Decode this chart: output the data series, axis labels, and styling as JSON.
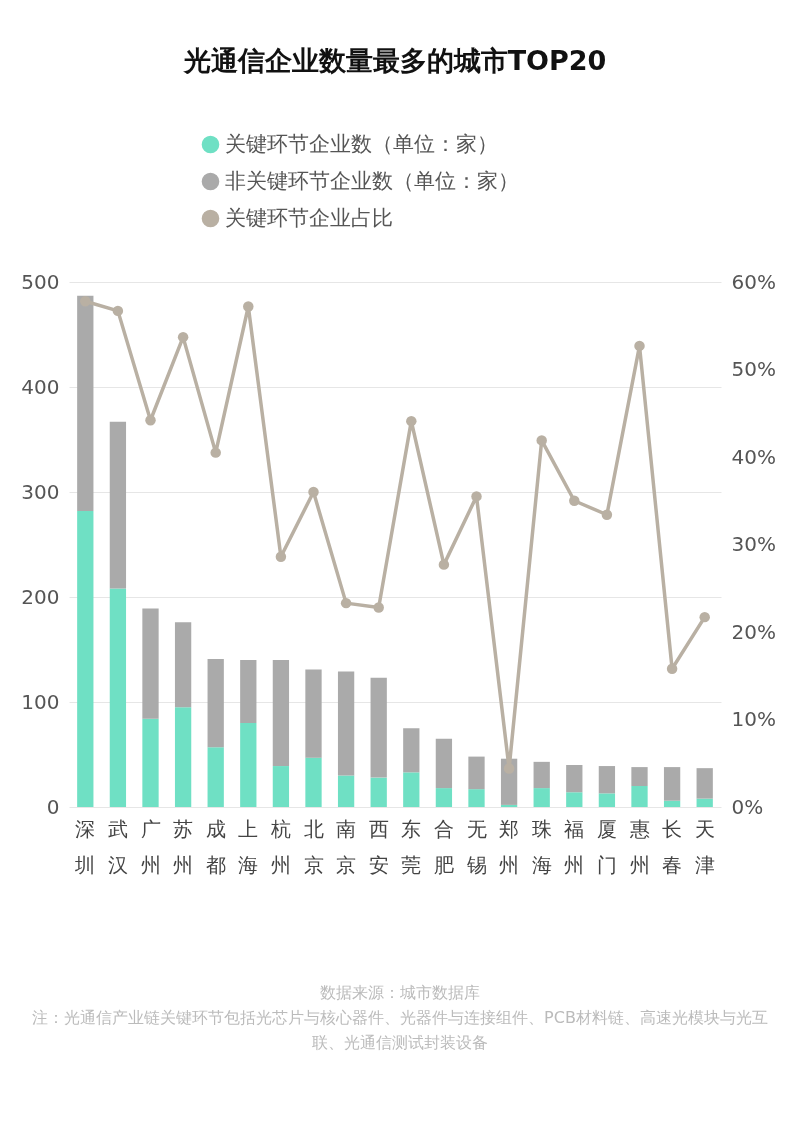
{
  "chart_data": {
    "type": "bar",
    "title": "光通信企业数量最多的城市TOP20",
    "categories": [
      "深圳",
      "武汉",
      "广州",
      "苏州",
      "成都",
      "上海",
      "杭州",
      "北京",
      "南京",
      "西安",
      "东莞",
      "合肥",
      "无锡",
      "郑州",
      "珠海",
      "福州",
      "厦门",
      "惠州",
      "长春",
      "天津"
    ],
    "stacked": true,
    "series": [
      {
        "name": "关键环节企业数（单位：家）",
        "color": "#6fe0c4",
        "values": [
          282,
          208,
          84,
          95,
          57,
          80,
          39,
          47,
          30,
          28,
          33,
          18,
          17,
          2,
          18,
          14,
          13,
          20,
          6,
          8
        ]
      },
      {
        "name": "非关键环节企业数（单位：家）",
        "color": "#aaaaaa",
        "values": [
          205,
          159,
          105,
          81,
          84,
          60,
          101,
          84,
          99,
          95,
          42,
          47,
          31,
          44,
          25,
          26,
          26,
          18,
          32,
          29
        ]
      },
      {
        "name": "关键环节企业占比",
        "color": "#b9b0a3",
        "type": "line",
        "axis": "y2",
        "values": [
          57.8,
          56.7,
          44.2,
          53.7,
          40.5,
          57.2,
          28.6,
          36.0,
          23.3,
          22.8,
          44.1,
          27.7,
          35.5,
          4.4,
          41.9,
          35.0,
          33.4,
          52.7,
          15.8,
          21.7
        ]
      }
    ],
    "ylim": [
      0,
      500
    ],
    "yticks": [
      0,
      100,
      200,
      300,
      400,
      500
    ],
    "y2lim": [
      0,
      60
    ],
    "y2ticks": [
      {
        "value": 0,
        "label": "0%"
      },
      {
        "value": 10,
        "label": "10%"
      },
      {
        "value": 20,
        "label": "20%"
      },
      {
        "value": 30,
        "label": "30%"
      },
      {
        "value": 40,
        "label": "40%"
      },
      {
        "value": 50,
        "label": "50%"
      },
      {
        "value": 60,
        "label": "60%"
      }
    ],
    "grid": "y",
    "legend": "top",
    "marker": "circle",
    "line_style": "solid",
    "annotations": [
      "数据来源：城市数据库",
      "注：光通信产业链关键环节包括光芯片与核心器件、光器件与连接组件、PCB材料链、高速光模块与光互联、光通信测试封装设备"
    ]
  }
}
